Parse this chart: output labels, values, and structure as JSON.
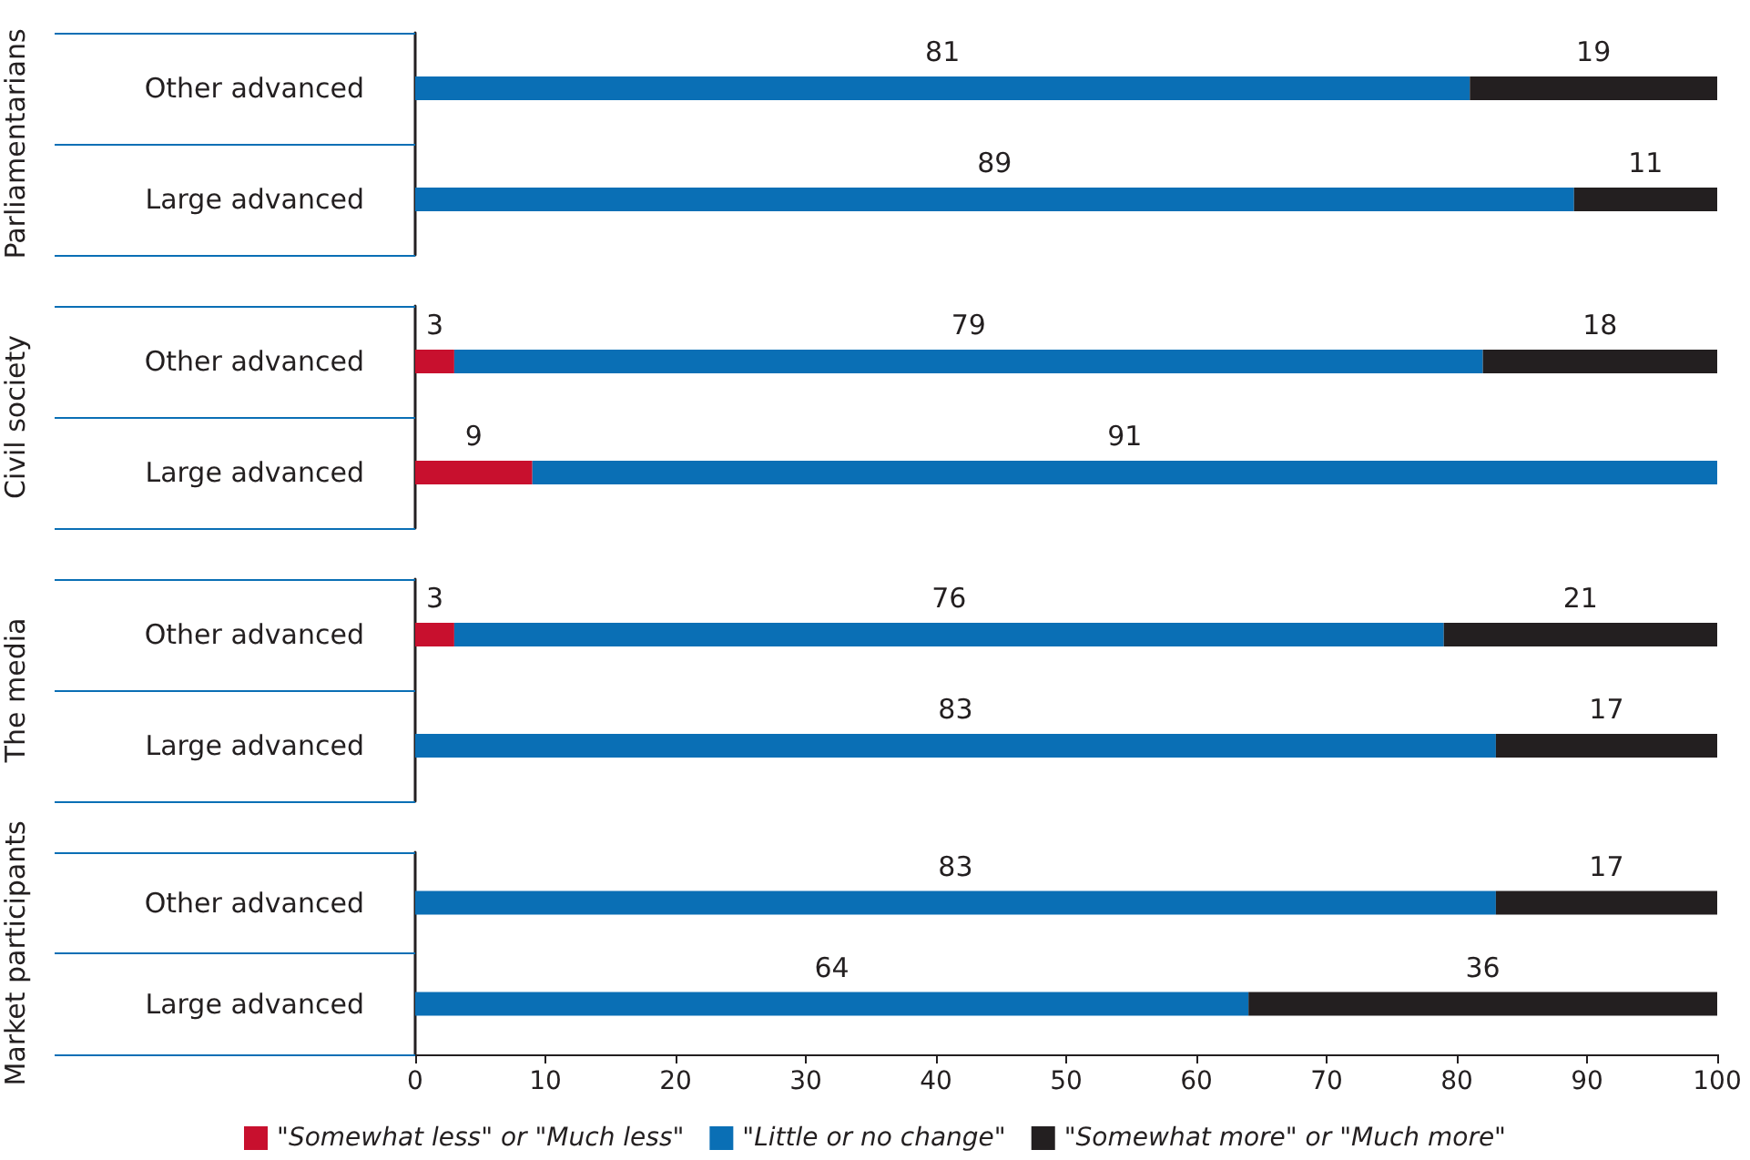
{
  "chart_data": [
    {
      "type": "bar",
      "orientation": "horizontal",
      "stacked": true,
      "ylabel": "Parliamentarians",
      "categories": [
        "Other advanced",
        "Large advanced"
      ],
      "xlim": [
        0,
        100
      ],
      "xticks": [
        0,
        10,
        20,
        30,
        40,
        50,
        60,
        70,
        80,
        90,
        100
      ],
      "tick_labels": "y",
      "data_labels": true,
      "legend": false,
      "grid": false,
      "series": [
        {
          "color": "#c8102e",
          "values": [
            null,
            null
          ]
        },
        {
          "color": "#0a6fb5",
          "values": [
            81,
            89
          ]
        },
        {
          "color": "#231f20",
          "values": [
            19,
            11
          ]
        }
      ]
    },
    {
      "type": "bar",
      "orientation": "horizontal",
      "stacked": true,
      "ylabel": "Civil society",
      "categories": [
        "Other advanced",
        "Large advanced"
      ],
      "xlim": [
        0,
        100
      ],
      "xticks": [
        0,
        10,
        20,
        30,
        40,
        50,
        60,
        70,
        80,
        90,
        100
      ],
      "tick_labels": "y",
      "data_labels": true,
      "legend": false,
      "grid": false,
      "series": [
        {
          "color": "#c8102e",
          "values": [
            3,
            9
          ]
        },
        {
          "color": "#0a6fb5",
          "values": [
            79,
            91
          ]
        },
        {
          "color": "#231f20",
          "values": [
            18,
            null
          ]
        }
      ]
    },
    {
      "type": "bar",
      "orientation": "horizontal",
      "stacked": true,
      "ylabel": "The media",
      "categories": [
        "Other advanced",
        "Large advanced"
      ],
      "xlim": [
        0,
        100
      ],
      "xticks": [
        0,
        10,
        20,
        30,
        40,
        50,
        60,
        70,
        80,
        90,
        100
      ],
      "tick_labels": "y",
      "data_labels": true,
      "legend": false,
      "grid": false,
      "series": [
        {
          "color": "#c8102e",
          "values": [
            3,
            null
          ]
        },
        {
          "color": "#0a6fb5",
          "values": [
            76,
            83
          ]
        },
        {
          "color": "#231f20",
          "values": [
            21,
            17
          ]
        }
      ]
    },
    {
      "type": "bar",
      "orientation": "horizontal",
      "stacked": true,
      "ylabel": "Market participants",
      "categories": [
        "Other advanced",
        "Large advanced"
      ],
      "xlim": [
        0,
        100
      ],
      "xticks": [
        0,
        10,
        20,
        30,
        40,
        50,
        60,
        70,
        80,
        90,
        100
      ],
      "data_labels": true,
      "legend": "bottom",
      "grid": false,
      "series": [
        {
          "name": "\"Somewhat less\" or \"Much less\"",
          "color": "#c8102e",
          "values": [
            null,
            null
          ]
        },
        {
          "name": "\"Little or no change\"",
          "color": "#0a6fb5",
          "values": [
            83,
            64
          ]
        },
        {
          "name": "\"Somewhat more\" or \"Much more\"",
          "color": "#231f20",
          "values": [
            17,
            36
          ]
        }
      ]
    }
  ]
}
